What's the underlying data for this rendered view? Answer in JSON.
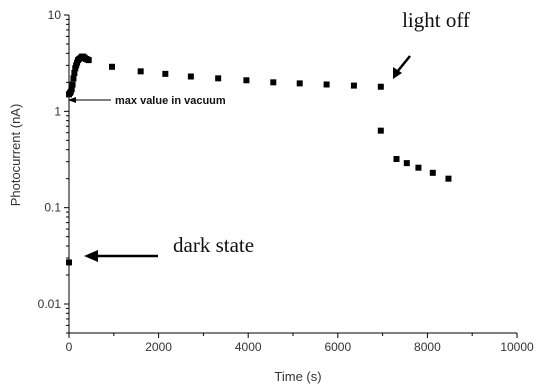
{
  "chart_data": {
    "type": "scatter",
    "xlabel": "Time (s)",
    "ylabel": "Photocurrent (nA)",
    "xlim": [
      0,
      10000
    ],
    "ylim": [
      0.005,
      10
    ],
    "yscale": "log",
    "x_ticks": [
      0,
      2000,
      4000,
      6000,
      8000,
      10000
    ],
    "x_tick_labels": [
      "0",
      "2000",
      "4000",
      "6000",
      "8000",
      "10000"
    ],
    "y_ticks": [
      0.01,
      0.1,
      1,
      10
    ],
    "y_tick_labels": [
      "0.01",
      "0.1",
      "1",
      "10"
    ],
    "grid": false,
    "marker_color": "#000000",
    "points": [
      {
        "x": 0,
        "y": 0.027
      },
      {
        "x": 0,
        "y": 1.5
      },
      {
        "x": 20,
        "y": 1.55
      },
      {
        "x": 40,
        "y": 1.6
      },
      {
        "x": 60,
        "y": 1.7
      },
      {
        "x": 80,
        "y": 1.9
      },
      {
        "x": 100,
        "y": 2.2
      },
      {
        "x": 120,
        "y": 2.5
      },
      {
        "x": 140,
        "y": 2.8
      },
      {
        "x": 160,
        "y": 3.0
      },
      {
        "x": 180,
        "y": 3.2
      },
      {
        "x": 200,
        "y": 3.4
      },
      {
        "x": 230,
        "y": 3.5
      },
      {
        "x": 260,
        "y": 3.6
      },
      {
        "x": 290,
        "y": 3.7
      },
      {
        "x": 320,
        "y": 3.7
      },
      {
        "x": 350,
        "y": 3.6
      },
      {
        "x": 380,
        "y": 3.5
      },
      {
        "x": 410,
        "y": 3.45
      },
      {
        "x": 440,
        "y": 3.4
      },
      {
        "x": 960,
        "y": 2.9
      },
      {
        "x": 1600,
        "y": 2.6
      },
      {
        "x": 2150,
        "y": 2.45
      },
      {
        "x": 2720,
        "y": 2.3
      },
      {
        "x": 3330,
        "y": 2.2
      },
      {
        "x": 3960,
        "y": 2.1
      },
      {
        "x": 4560,
        "y": 2.0
      },
      {
        "x": 5150,
        "y": 1.95
      },
      {
        "x": 5750,
        "y": 1.9
      },
      {
        "x": 6360,
        "y": 1.85
      },
      {
        "x": 6960,
        "y": 1.8
      },
      {
        "x": 6960,
        "y": 0.63
      },
      {
        "x": 7310,
        "y": 0.32
      },
      {
        "x": 7540,
        "y": 0.29
      },
      {
        "x": 7800,
        "y": 0.26
      },
      {
        "x": 8120,
        "y": 0.23
      },
      {
        "x": 8470,
        "y": 0.2
      }
    ],
    "annotations": [
      {
        "text": "light off",
        "target": {
          "x": 7150,
          "y": 2.0
        }
      },
      {
        "text": "max value in vacuum",
        "target": {
          "x": 30,
          "y": 1.2
        }
      },
      {
        "text": "dark state",
        "target": {
          "x": 280,
          "y": 0.027
        }
      }
    ]
  }
}
